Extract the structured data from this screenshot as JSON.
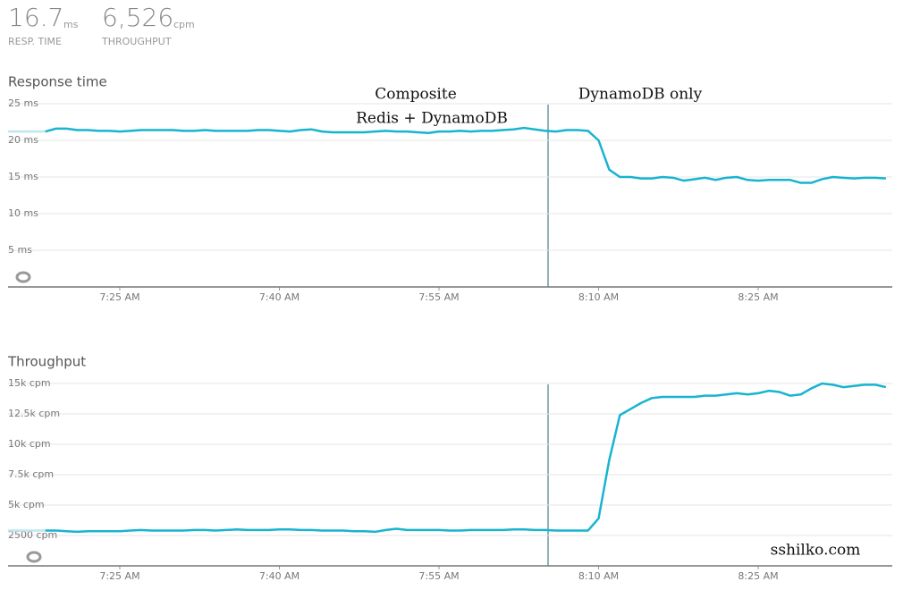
{
  "header": {
    "metrics": [
      {
        "value": "16.7",
        "unit": "ms",
        "label": "RESP. TIME"
      },
      {
        "value": "6,526",
        "unit": "cpm",
        "label": "THROUGHPUT"
      }
    ]
  },
  "watermark": "sshilko.com",
  "chart_data": [
    {
      "type": "line",
      "title": "Response time",
      "color": "#17b4d0",
      "grid": true,
      "annotations": [
        "Composite",
        "Redis + DynamoDB",
        "DynamoDB only"
      ],
      "x": [
        438,
        439,
        440,
        441,
        442,
        443,
        444,
        445,
        446,
        447,
        448,
        449,
        450,
        451,
        452,
        453,
        454,
        455,
        456,
        457,
        458,
        459,
        460,
        461,
        462,
        463,
        464,
        465,
        466,
        467,
        468,
        469,
        470,
        471,
        472,
        473,
        474,
        475,
        476,
        477,
        478,
        479,
        480,
        481,
        482,
        483,
        484,
        485,
        486,
        487,
        488,
        489,
        490,
        491,
        492,
        493,
        494,
        495,
        496,
        497,
        498,
        499,
        500,
        501,
        502,
        503,
        504,
        505,
        506,
        507,
        508,
        509,
        510,
        511,
        512,
        513,
        514,
        515,
        516,
        517
      ],
      "values": [
        21.2,
        21.6,
        21.6,
        21.4,
        21.4,
        21.3,
        21.3,
        21.2,
        21.3,
        21.4,
        21.4,
        21.4,
        21.4,
        21.3,
        21.3,
        21.4,
        21.3,
        21.3,
        21.3,
        21.3,
        21.4,
        21.4,
        21.3,
        21.2,
        21.4,
        21.5,
        21.2,
        21.1,
        21.1,
        21.1,
        21.1,
        21.2,
        21.3,
        21.2,
        21.2,
        21.1,
        21.0,
        21.2,
        21.2,
        21.3,
        21.2,
        21.3,
        21.3,
        21.4,
        21.5,
        21.7,
        21.5,
        21.3,
        21.2,
        21.4,
        21.4,
        21.3,
        20.0,
        16.0,
        15.0,
        15.0,
        14.8,
        14.8,
        15.0,
        14.9,
        14.5,
        14.7,
        14.9,
        14.6,
        14.9,
        15.0,
        14.6,
        14.5,
        14.6,
        14.6,
        14.6,
        14.2,
        14.2,
        14.7,
        15.0,
        14.9,
        14.8,
        14.9,
        14.9,
        14.8
      ],
      "xlim": [
        434.5,
        517.6
      ],
      "xticks": [
        {
          "value": 445,
          "label": "7:25 AM"
        },
        {
          "value": 460,
          "label": "7:40 AM"
        },
        {
          "value": 475,
          "label": "7:55 AM"
        },
        {
          "value": 490,
          "label": "8:10 AM"
        },
        {
          "value": 505,
          "label": "8:25 AM"
        }
      ],
      "ylim": [
        0,
        25
      ],
      "yticks": [
        {
          "value": 5,
          "label": "5 ms"
        },
        {
          "value": 10,
          "label": "10 ms"
        },
        {
          "value": 15,
          "label": "15 ms"
        },
        {
          "value": 20,
          "label": "20 ms"
        },
        {
          "value": 25,
          "label": "25 ms"
        }
      ]
    },
    {
      "type": "line",
      "title": "Throughput",
      "color": "#17b4d0",
      "grid": true,
      "x": [
        438,
        439,
        440,
        441,
        442,
        443,
        444,
        445,
        446,
        447,
        448,
        449,
        450,
        451,
        452,
        453,
        454,
        455,
        456,
        457,
        458,
        459,
        460,
        461,
        462,
        463,
        464,
        465,
        466,
        467,
        468,
        469,
        470,
        471,
        472,
        473,
        474,
        475,
        476,
        477,
        478,
        479,
        480,
        481,
        482,
        483,
        484,
        485,
        486,
        487,
        488,
        489,
        490,
        491,
        492,
        493,
        494,
        495,
        496,
        497,
        498,
        499,
        500,
        501,
        502,
        503,
        504,
        505,
        506,
        507,
        508,
        509,
        510,
        511,
        512,
        513,
        514,
        515,
        516,
        517
      ],
      "values": [
        2900,
        2900,
        2850,
        2800,
        2850,
        2850,
        2850,
        2850,
        2900,
        2950,
        2900,
        2900,
        2900,
        2900,
        2950,
        2950,
        2900,
        2950,
        3000,
        2950,
        2950,
        2950,
        3000,
        3000,
        2950,
        2950,
        2900,
        2900,
        2900,
        2850,
        2850,
        2800,
        2950,
        3050,
        2950,
        2950,
        2950,
        2950,
        2900,
        2900,
        2950,
        2950,
        2950,
        2950,
        3000,
        3000,
        2950,
        2950,
        2900,
        2900,
        2900,
        2900,
        3900,
        8700,
        12400,
        12900,
        13400,
        13800,
        13900,
        13900,
        13900,
        13900,
        14000,
        14000,
        14100,
        14200,
        14100,
        14200,
        14400,
        14300,
        14000,
        14100,
        14600,
        15000,
        14900,
        14700,
        14800,
        14900,
        14900,
        14700
      ],
      "xlim": [
        434.5,
        517.6
      ],
      "xticks": [
        {
          "value": 445,
          "label": "7:25 AM"
        },
        {
          "value": 460,
          "label": "7:40 AM"
        },
        {
          "value": 475,
          "label": "7:55 AM"
        },
        {
          "value": 490,
          "label": "8:10 AM"
        },
        {
          "value": 505,
          "label": "8:25 AM"
        }
      ],
      "ylim": [
        0,
        15000
      ],
      "yticks": [
        {
          "value": 2500,
          "label": "2500 cpm"
        },
        {
          "value": 5000,
          "label": "5k cpm"
        },
        {
          "value": 7500,
          "label": "7.5k cpm"
        },
        {
          "value": 10000,
          "label": "10k cpm"
        },
        {
          "value": 12500,
          "label": "12.5k cpm"
        },
        {
          "value": 15000,
          "label": "15k cpm"
        }
      ]
    }
  ]
}
